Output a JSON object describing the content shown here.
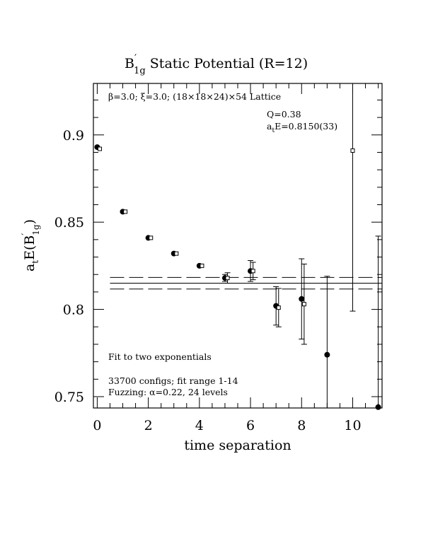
{
  "chart_data": {
    "type": "scatter",
    "title_parts": {
      "main": "B",
      "prime": "′",
      "sub": "1g",
      "rest": " Static Potential (R=12)"
    },
    "xlabel": "time separation",
    "ylabel_parts": {
      "a": "a",
      "t": "t",
      "E": "E(B",
      "prime": "′",
      "sub": "1g",
      "close": ")"
    },
    "xlim": [
      -0.15,
      11.15
    ],
    "ylim": [
      0.7435,
      0.9295
    ],
    "x_ticks": [
      0,
      2,
      4,
      6,
      8,
      10
    ],
    "y_ticks": [
      0.75,
      0.8,
      0.85,
      0.9
    ],
    "x_tick_labels": [
      "0",
      "2",
      "4",
      "6",
      "8",
      "10"
    ],
    "y_tick_labels": [
      "0.75",
      "0.8",
      "0.85",
      "0.9"
    ],
    "x_minor_step": 0.5,
    "y_minor_step": 0.01,
    "lattice_label": "β=3.0; ξ=3.0; (18×18×24)×54 Lattice",
    "fit_q": "Q=0.38",
    "fit_energy_parts": {
      "a": "a",
      "t": "t",
      "rest": "E=0.8150(33)"
    },
    "fit_label": "Fit to two exponentials",
    "configs_label": "33700 configs; fit range 1-14",
    "fuzzing_label": "Fuzzing: α=0.22, 24 levels",
    "fit": {
      "value": 0.815,
      "error": 0.0033,
      "x_start": 0.5,
      "x_end": 11.15
    },
    "series": [
      {
        "marker": "filled-circle",
        "points": [
          {
            "x": 0,
            "y": 0.893,
            "err": 0.0
          },
          {
            "x": 1,
            "y": 0.856,
            "err": 0.0
          },
          {
            "x": 2,
            "y": 0.841,
            "err": 0.0
          },
          {
            "x": 3,
            "y": 0.832,
            "err": 0.0
          },
          {
            "x": 4,
            "y": 0.825,
            "err": 0.0
          },
          {
            "x": 5,
            "y": 0.818,
            "err": 0.002
          },
          {
            "x": 6,
            "y": 0.822,
            "err": 0.006
          },
          {
            "x": 7,
            "y": 0.802,
            "err": 0.011
          },
          {
            "x": 8,
            "y": 0.806,
            "err": 0.023
          },
          {
            "x": 9,
            "y": 0.774,
            "err": 0.045
          },
          {
            "x": 11,
            "y": 0.744,
            "err": 0.098
          }
        ]
      },
      {
        "marker": "open-square",
        "points": [
          {
            "x": 0.1,
            "y": 0.892,
            "err": 0.0
          },
          {
            "x": 1.1,
            "y": 0.856,
            "err": 0.0
          },
          {
            "x": 2.1,
            "y": 0.841,
            "err": 0.0
          },
          {
            "x": 3.1,
            "y": 0.832,
            "err": 0.0
          },
          {
            "x": 4.1,
            "y": 0.825,
            "err": 0.0
          },
          {
            "x": 5.1,
            "y": 0.818,
            "err": 0.003
          },
          {
            "x": 6.1,
            "y": 0.822,
            "err": 0.005
          },
          {
            "x": 7.1,
            "y": 0.801,
            "err": 0.011
          },
          {
            "x": 8.1,
            "y": 0.803,
            "err": 0.023
          },
          {
            "x": 10.0,
            "y": 0.891,
            "err": 0.092
          }
        ]
      }
    ]
  }
}
